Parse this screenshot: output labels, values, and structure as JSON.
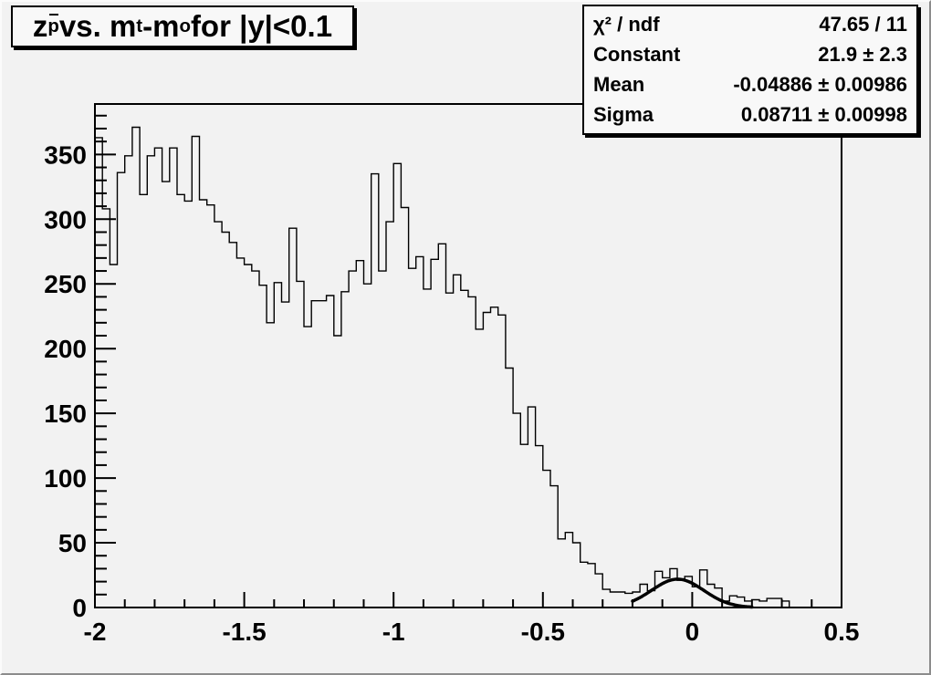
{
  "title": {
    "full_text": "z_p̄ vs. m_t-m_o for |y|<0.1",
    "parts": [
      {
        "t": "z",
        "sub": false,
        "bar": false
      },
      {
        "t": "p",
        "sub": true,
        "bar": true
      },
      {
        "t": " vs. m",
        "sub": false,
        "bar": false
      },
      {
        "t": "t",
        "sub": true,
        "bar": false
      },
      {
        "t": "-m",
        "sub": false,
        "bar": false
      },
      {
        "t": "o",
        "sub": true,
        "bar": false
      },
      {
        "t": " for |y|<0.1",
        "sub": false,
        "bar": false
      }
    ]
  },
  "stats": {
    "rows": [
      {
        "label": "χ² / ndf",
        "value": "47.65 / 11"
      },
      {
        "label": "Constant",
        "value": "21.9 ± 2.3"
      },
      {
        "label": "Mean",
        "value": "-0.04886 ± 0.00986"
      },
      {
        "label": "Sigma",
        "value": "0.08711 ± 0.00998"
      }
    ]
  },
  "colors": {
    "canvas": "#f2f2f2",
    "box_fill": "#f8f8f8",
    "line": "#000000",
    "border_dark": "#8c8c8c",
    "border_light": "#fbfbfb"
  },
  "chart_data": {
    "type": "bar",
    "style": "step-histogram",
    "title": "z_p vs. m_t-m_o for |y|<0.1",
    "x_start": -2.0,
    "bin_width": 0.025,
    "values": [
      363,
      308,
      265,
      336,
      349,
      371,
      319,
      349,
      355,
      329,
      355,
      319,
      314,
      364,
      315,
      311,
      298,
      290,
      282,
      270,
      265,
      260,
      249,
      220,
      251,
      236,
      293,
      252,
      217,
      237,
      237,
      241,
      210,
      244,
      260,
      268,
      250,
      335,
      260,
      298,
      343,
      309,
      262,
      271,
      246,
      269,
      281,
      243,
      257,
      245,
      240,
      215,
      228,
      232,
      226,
      185,
      150,
      126,
      155,
      125,
      106,
      94,
      53,
      58,
      50,
      35,
      34,
      26,
      14,
      12,
      12,
      11,
      12,
      18,
      13,
      28,
      23,
      30,
      21,
      24,
      16,
      29,
      18,
      15,
      5,
      9,
      8,
      5,
      6,
      5,
      7,
      7,
      5,
      0,
      0,
      0,
      0,
      0,
      0,
      0
    ],
    "xlim": [
      -2.0,
      0.5
    ],
    "ylim": [
      0,
      389
    ],
    "x_major_ticks": [
      -2,
      -1.5,
      -1,
      -0.5,
      0,
      0.5
    ],
    "x_tick_labels": [
      "-2",
      "-1.5",
      "-1",
      "-0.5",
      "0",
      "0.5"
    ],
    "x_minor_step": 0.1,
    "y_major_ticks": [
      0,
      50,
      100,
      150,
      200,
      250,
      300,
      350
    ],
    "y_tick_labels": [
      "0",
      "50",
      "100",
      "150",
      "200",
      "250",
      "300",
      "350"
    ],
    "y_minor_step": 10,
    "grid": false,
    "legend_position": "none",
    "fit": {
      "type": "gaussian",
      "constant": 21.9,
      "mean": -0.04886,
      "sigma": 0.08711,
      "draw_range": [
        -0.2,
        0.2
      ]
    }
  }
}
